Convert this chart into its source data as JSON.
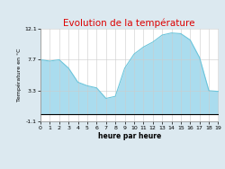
{
  "title": "Evolution de la température",
  "xlabel": "heure par heure",
  "ylabel": "Température en °C",
  "background_color": "#dce9f0",
  "plot_bg_color": "#ffffff",
  "line_color": "#6cc5db",
  "fill_color": "#aadcee",
  "title_color": "#dd0000",
  "ylim": [
    -1.1,
    12.1
  ],
  "yticks": [
    -1.1,
    3.3,
    7.7,
    12.1
  ],
  "ytick_labels": [
    "-1.1",
    "3.3",
    "7.7",
    "12.1"
  ],
  "hours": [
    0,
    1,
    2,
    3,
    4,
    5,
    6,
    7,
    8,
    9,
    10,
    11,
    12,
    13,
    14,
    15,
    16,
    17,
    18,
    19
  ],
  "temps": [
    7.7,
    7.5,
    7.7,
    6.5,
    4.5,
    4.0,
    3.7,
    2.2,
    2.5,
    6.5,
    8.5,
    9.5,
    10.2,
    11.2,
    11.5,
    11.4,
    10.5,
    8.0,
    3.3,
    3.2
  ],
  "fill_baseline": 0,
  "title_fontsize": 7.5,
  "label_fontsize": 5.5,
  "tick_fontsize": 4.5,
  "ylabel_fontsize": 4.5
}
